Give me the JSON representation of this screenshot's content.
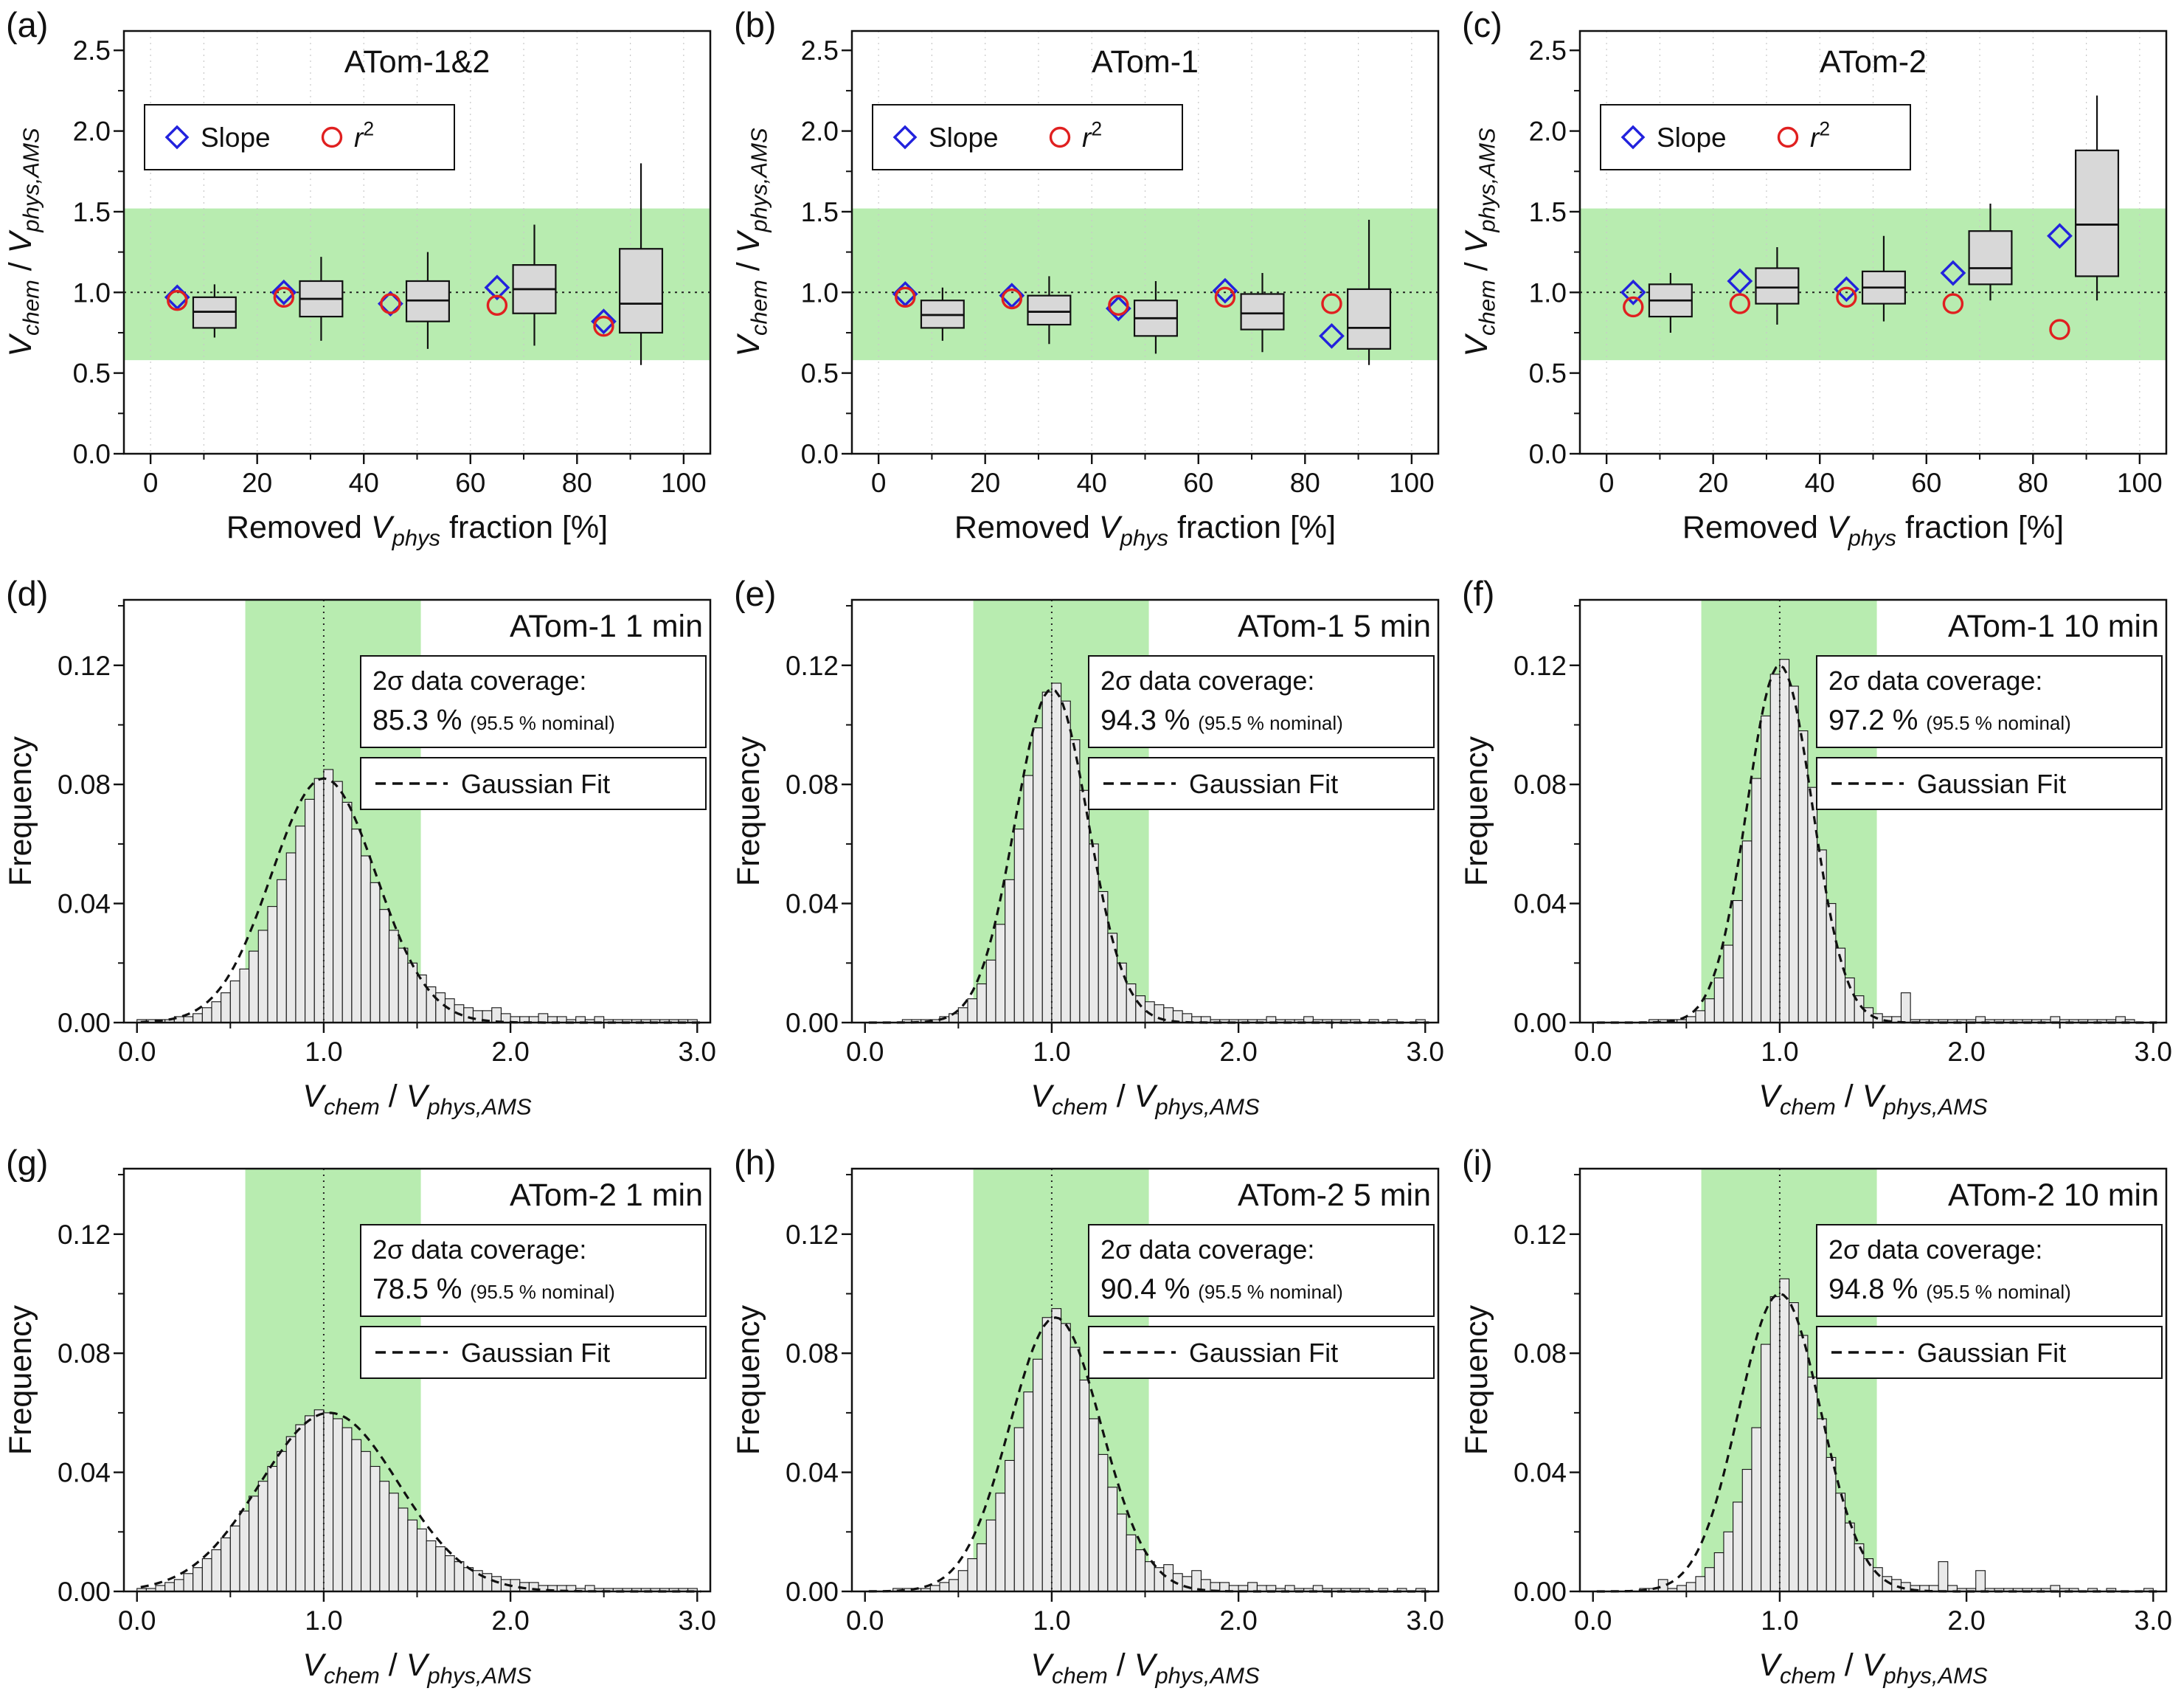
{
  "figure": {
    "background": "#ffffff",
    "colors": {
      "band": "#b8ecb0",
      "slope": "#2222dd",
      "r2": "#e02020",
      "box_fill": "#d8d8d8",
      "bar_fill": "#e9e9e9",
      "axis": "#111111"
    },
    "panels": [
      {
        "letter": "(a)"
      },
      {
        "letter": "(b)"
      },
      {
        "letter": "(c)"
      },
      {
        "letter": "(d)"
      },
      {
        "letter": "(e)"
      },
      {
        "letter": "(f)"
      },
      {
        "letter": "(g)"
      },
      {
        "letter": "(h)"
      },
      {
        "letter": "(i)"
      }
    ]
  },
  "labels": {
    "ratio_segments": [
      {
        "t": "V",
        "s": "i"
      },
      {
        "t": "chem",
        "s": "sub"
      },
      {
        "t": " / ",
        "s": "n"
      },
      {
        "t": "V",
        "s": "i"
      },
      {
        "t": "phys,AMS",
        "s": "sub"
      }
    ],
    "removed_segments": [
      {
        "t": "Removed ",
        "s": "n"
      },
      {
        "t": "V",
        "s": "i"
      },
      {
        "t": "phys",
        "s": "sub"
      },
      {
        "t": " fraction [%]",
        "s": "n"
      }
    ],
    "frequency_segments": [
      {
        "t": "Frequency",
        "s": "n"
      }
    ],
    "r2_segments": [
      {
        "t": "r",
        "s": "i"
      },
      {
        "t": "2",
        "s": "sup"
      }
    ],
    "slope_label": "Slope"
  },
  "chart_data": [
    {
      "type": "box",
      "title": "ATom-1&2",
      "xlim": [
        -5,
        105
      ],
      "ylim": [
        0,
        2.62
      ],
      "x_ticks": [
        0,
        20,
        40,
        60,
        80,
        100
      ],
      "x_tick_labels": [
        "0",
        "20",
        "40",
        "60",
        "80",
        "100"
      ],
      "x_minor": 10,
      "y_ticks": [
        0,
        0.5,
        1.0,
        1.5,
        2.0,
        2.5
      ],
      "y_tick_labels": [
        "0.0",
        "0.5",
        "1.0",
        "1.5",
        "2.0",
        "2.5"
      ],
      "y_minor": 0.25,
      "green_band": [
        0.58,
        1.52
      ],
      "ref_line": 1.0,
      "xlabel": "removed",
      "ylabel": "ratio",
      "groups": [
        {
          "x": 5,
          "slope": 0.97,
          "r2": 0.95,
          "box_x": 12,
          "lo": 0.72,
          "q1": 0.78,
          "med": 0.88,
          "q3": 0.97,
          "hi": 1.05
        },
        {
          "x": 25,
          "slope": 1.0,
          "r2": 0.97,
          "box_x": 32,
          "lo": 0.7,
          "q1": 0.85,
          "med": 0.96,
          "q3": 1.07,
          "hi": 1.22
        },
        {
          "x": 45,
          "slope": 0.93,
          "r2": 0.93,
          "box_x": 52,
          "lo": 0.65,
          "q1": 0.82,
          "med": 0.95,
          "q3": 1.07,
          "hi": 1.25
        },
        {
          "x": 65,
          "slope": 1.03,
          "r2": 0.92,
          "box_x": 72,
          "lo": 0.67,
          "q1": 0.87,
          "med": 1.02,
          "q3": 1.17,
          "hi": 1.42
        },
        {
          "x": 85,
          "slope": 0.82,
          "r2": 0.79,
          "box_x": 92,
          "lo": 0.55,
          "q1": 0.75,
          "med": 0.93,
          "q3": 1.27,
          "hi": 1.8
        }
      ]
    },
    {
      "type": "box",
      "title": "ATom-1",
      "xlim": [
        -5,
        105
      ],
      "ylim": [
        0,
        2.62
      ],
      "x_ticks": [
        0,
        20,
        40,
        60,
        80,
        100
      ],
      "x_tick_labels": [
        "0",
        "20",
        "40",
        "60",
        "80",
        "100"
      ],
      "x_minor": 10,
      "y_ticks": [
        0,
        0.5,
        1.0,
        1.5,
        2.0,
        2.5
      ],
      "y_tick_labels": [
        "0.0",
        "0.5",
        "1.0",
        "1.5",
        "2.0",
        "2.5"
      ],
      "y_minor": 0.25,
      "green_band": [
        0.58,
        1.52
      ],
      "ref_line": 1.0,
      "xlabel": "removed",
      "ylabel": "ratio",
      "groups": [
        {
          "x": 5,
          "slope": 0.99,
          "r2": 0.97,
          "box_x": 12,
          "lo": 0.7,
          "q1": 0.78,
          "med": 0.86,
          "q3": 0.95,
          "hi": 1.03
        },
        {
          "x": 25,
          "slope": 0.98,
          "r2": 0.96,
          "box_x": 32,
          "lo": 0.68,
          "q1": 0.8,
          "med": 0.88,
          "q3": 0.98,
          "hi": 1.1
        },
        {
          "x": 45,
          "slope": 0.9,
          "r2": 0.92,
          "box_x": 52,
          "lo": 0.62,
          "q1": 0.73,
          "med": 0.84,
          "q3": 0.95,
          "hi": 1.07
        },
        {
          "x": 65,
          "slope": 1.01,
          "r2": 0.97,
          "box_x": 72,
          "lo": 0.63,
          "q1": 0.77,
          "med": 0.87,
          "q3": 0.99,
          "hi": 1.12
        },
        {
          "x": 85,
          "slope": 0.73,
          "r2": 0.93,
          "box_x": 92,
          "lo": 0.55,
          "q1": 0.65,
          "med": 0.78,
          "q3": 1.02,
          "hi": 1.45
        }
      ]
    },
    {
      "type": "box",
      "title": "ATom-2",
      "xlim": [
        -5,
        105
      ],
      "ylim": [
        0,
        2.62
      ],
      "x_ticks": [
        0,
        20,
        40,
        60,
        80,
        100
      ],
      "x_tick_labels": [
        "0",
        "20",
        "40",
        "60",
        "80",
        "100"
      ],
      "x_minor": 10,
      "y_ticks": [
        0,
        0.5,
        1.0,
        1.5,
        2.0,
        2.5
      ],
      "y_tick_labels": [
        "0.0",
        "0.5",
        "1.0",
        "1.5",
        "2.0",
        "2.5"
      ],
      "y_minor": 0.25,
      "green_band": [
        0.58,
        1.52
      ],
      "ref_line": 1.0,
      "xlabel": "removed",
      "ylabel": "ratio",
      "groups": [
        {
          "x": 5,
          "slope": 1.0,
          "r2": 0.91,
          "box_x": 12,
          "lo": 0.75,
          "q1": 0.85,
          "med": 0.95,
          "q3": 1.05,
          "hi": 1.12
        },
        {
          "x": 25,
          "slope": 1.07,
          "r2": 0.93,
          "box_x": 32,
          "lo": 0.8,
          "q1": 0.93,
          "med": 1.03,
          "q3": 1.15,
          "hi": 1.28
        },
        {
          "x": 45,
          "slope": 1.02,
          "r2": 0.97,
          "box_x": 52,
          "lo": 0.82,
          "q1": 0.93,
          "med": 1.03,
          "q3": 1.13,
          "hi": 1.35
        },
        {
          "x": 65,
          "slope": 1.12,
          "r2": 0.93,
          "box_x": 72,
          "lo": 0.95,
          "q1": 1.05,
          "med": 1.15,
          "q3": 1.38,
          "hi": 1.55
        },
        {
          "x": 85,
          "slope": 1.35,
          "r2": 0.77,
          "box_x": 92,
          "lo": 0.95,
          "q1": 1.1,
          "med": 1.42,
          "q3": 1.88,
          "hi": 2.22
        }
      ]
    },
    {
      "type": "hist",
      "title": "ATom-1 1 min",
      "coverage_label": "2σ data coverage:",
      "coverage_value": "85.3 %",
      "coverage_nominal": "(95.5 % nominal)",
      "fit_label": "Gaussian Fit",
      "xlim": [
        -0.07,
        3.07
      ],
      "ylim": [
        0,
        0.142
      ],
      "x_ticks": [
        0,
        1,
        2,
        3
      ],
      "x_tick_labels": [
        "0.0",
        "1.0",
        "2.0",
        "3.0"
      ],
      "x_minor": 0.5,
      "y_ticks": [
        0,
        0.04,
        0.08,
        0.12
      ],
      "y_tick_labels": [
        "0.00",
        "0.04",
        "0.08",
        "0.12"
      ],
      "y_minor": 0.02,
      "green_band": [
        0.58,
        1.52
      ],
      "ref_line": 1.0,
      "xlabel": "ratio",
      "ylabel": "frequency",
      "bin_start": 0.0,
      "bin_width": 0.05,
      "fit": {
        "mu": 1.0,
        "sigma": 0.28,
        "amp": 0.082
      },
      "values": [
        0.001,
        0.001,
        0.001,
        0.001,
        0.002,
        0.002,
        0.003,
        0.005,
        0.007,
        0.01,
        0.014,
        0.018,
        0.024,
        0.031,
        0.039,
        0.048,
        0.057,
        0.066,
        0.075,
        0.082,
        0.085,
        0.081,
        0.074,
        0.065,
        0.056,
        0.047,
        0.038,
        0.031,
        0.025,
        0.02,
        0.016,
        0.012,
        0.01,
        0.008,
        0.006,
        0.005,
        0.004,
        0.004,
        0.005,
        0.003,
        0.002,
        0.002,
        0.002,
        0.003,
        0.002,
        0.002,
        0.001,
        0.002,
        0.001,
        0.002,
        0.001,
        0.001,
        0.001,
        0.001,
        0.001,
        0.001,
        0.001,
        0.001,
        0.001,
        0.001
      ]
    },
    {
      "type": "hist",
      "title": "ATom-1 5 min",
      "coverage_label": "2σ data coverage:",
      "coverage_value": "94.3 %",
      "coverage_nominal": "(95.5 % nominal)",
      "fit_label": "Gaussian Fit",
      "xlim": [
        -0.07,
        3.07
      ],
      "ylim": [
        0,
        0.142
      ],
      "x_ticks": [
        0,
        1,
        2,
        3
      ],
      "x_tick_labels": [
        "0.0",
        "1.0",
        "2.0",
        "3.0"
      ],
      "x_minor": 0.5,
      "y_ticks": [
        0,
        0.04,
        0.08,
        0.12
      ],
      "y_tick_labels": [
        "0.00",
        "0.04",
        "0.08",
        "0.12"
      ],
      "y_minor": 0.02,
      "green_band": [
        0.58,
        1.52
      ],
      "ref_line": 1.0,
      "xlabel": "ratio",
      "ylabel": "frequency",
      "bin_start": 0.0,
      "bin_width": 0.05,
      "fit": {
        "mu": 1.0,
        "sigma": 0.195,
        "amp": 0.112
      },
      "values": [
        0.0,
        0.0,
        0.0,
        0.0,
        0.001,
        0.001,
        0.001,
        0.001,
        0.002,
        0.003,
        0.005,
        0.008,
        0.013,
        0.021,
        0.033,
        0.048,
        0.065,
        0.083,
        0.099,
        0.111,
        0.114,
        0.108,
        0.095,
        0.078,
        0.06,
        0.044,
        0.03,
        0.02,
        0.013,
        0.009,
        0.007,
        0.006,
        0.005,
        0.004,
        0.003,
        0.002,
        0.002,
        0.001,
        0.001,
        0.001,
        0.001,
        0.001,
        0.001,
        0.002,
        0.001,
        0.001,
        0.001,
        0.002,
        0.001,
        0.001,
        0.001,
        0.001,
        0.001,
        0.0,
        0.001,
        0.0,
        0.001,
        0.0,
        0.0,
        0.001
      ]
    },
    {
      "type": "hist",
      "title": "ATom-1 10 min",
      "coverage_label": "2σ data coverage:",
      "coverage_value": "97.2 %",
      "coverage_nominal": "(95.5 % nominal)",
      "fit_label": "Gaussian Fit",
      "xlim": [
        -0.07,
        3.07
      ],
      "ylim": [
        0,
        0.142
      ],
      "x_ticks": [
        0,
        1,
        2,
        3
      ],
      "x_tick_labels": [
        "0.0",
        "1.0",
        "2.0",
        "3.0"
      ],
      "x_minor": 0.5,
      "y_ticks": [
        0,
        0.04,
        0.08,
        0.12
      ],
      "y_tick_labels": [
        "0.00",
        "0.04",
        "0.08",
        "0.12"
      ],
      "y_minor": 0.02,
      "green_band": [
        0.58,
        1.52
      ],
      "ref_line": 1.0,
      "xlabel": "ratio",
      "ylabel": "frequency",
      "bin_start": 0.0,
      "bin_width": 0.05,
      "fit": {
        "mu": 1.0,
        "sigma": 0.175,
        "amp": 0.12
      },
      "values": [
        0.0,
        0.0,
        0.0,
        0.0,
        0.0,
        0.0,
        0.001,
        0.001,
        0.001,
        0.001,
        0.002,
        0.004,
        0.008,
        0.015,
        0.026,
        0.041,
        0.061,
        0.082,
        0.103,
        0.117,
        0.122,
        0.113,
        0.098,
        0.079,
        0.058,
        0.04,
        0.025,
        0.015,
        0.009,
        0.005,
        0.003,
        0.002,
        0.002,
        0.01,
        0.001,
        0.001,
        0.001,
        0.001,
        0.001,
        0.001,
        0.001,
        0.002,
        0.001,
        0.001,
        0.001,
        0.001,
        0.001,
        0.001,
        0.001,
        0.002,
        0.001,
        0.001,
        0.001,
        0.001,
        0.001,
        0.001,
        0.002,
        0.001,
        0.0,
        0.0
      ]
    },
    {
      "type": "hist",
      "title": "ATom-2 1 min",
      "coverage_label": "2σ data coverage:",
      "coverage_value": "78.5 %",
      "coverage_nominal": "(95.5 % nominal)",
      "fit_label": "Gaussian Fit",
      "xlim": [
        -0.07,
        3.07
      ],
      "ylim": [
        0,
        0.142
      ],
      "x_ticks": [
        0,
        1,
        2,
        3
      ],
      "x_tick_labels": [
        "0.0",
        "1.0",
        "2.0",
        "3.0"
      ],
      "x_minor": 0.5,
      "y_ticks": [
        0,
        0.04,
        0.08,
        0.12
      ],
      "y_tick_labels": [
        "0.00",
        "0.04",
        "0.08",
        "0.12"
      ],
      "y_minor": 0.02,
      "green_band": [
        0.58,
        1.52
      ],
      "ref_line": 1.0,
      "xlabel": "ratio",
      "ylabel": "frequency",
      "bin_start": 0.0,
      "bin_width": 0.05,
      "fit": {
        "mu": 1.03,
        "sigma": 0.37,
        "amp": 0.06
      },
      "values": [
        0.001,
        0.001,
        0.002,
        0.003,
        0.004,
        0.006,
        0.008,
        0.011,
        0.014,
        0.018,
        0.022,
        0.027,
        0.032,
        0.037,
        0.042,
        0.047,
        0.052,
        0.056,
        0.059,
        0.061,
        0.06,
        0.058,
        0.055,
        0.051,
        0.047,
        0.042,
        0.037,
        0.033,
        0.028,
        0.024,
        0.021,
        0.017,
        0.015,
        0.012,
        0.01,
        0.008,
        0.007,
        0.006,
        0.005,
        0.004,
        0.004,
        0.003,
        0.003,
        0.002,
        0.002,
        0.002,
        0.002,
        0.001,
        0.002,
        0.001,
        0.001,
        0.001,
        0.001,
        0.001,
        0.001,
        0.001,
        0.001,
        0.001,
        0.001,
        0.001
      ]
    },
    {
      "type": "hist",
      "title": "ATom-2 5 min",
      "coverage_label": "2σ data coverage:",
      "coverage_value": "90.4 %",
      "coverage_nominal": "(95.5 % nominal)",
      "fit_label": "Gaussian Fit",
      "xlim": [
        -0.07,
        3.07
      ],
      "ylim": [
        0,
        0.142
      ],
      "x_ticks": [
        0,
        1,
        2,
        3
      ],
      "x_tick_labels": [
        "0.0",
        "1.0",
        "2.0",
        "3.0"
      ],
      "x_minor": 0.5,
      "y_ticks": [
        0,
        0.04,
        0.08,
        0.12
      ],
      "y_tick_labels": [
        "0.00",
        "0.04",
        "0.08",
        "0.12"
      ],
      "y_minor": 0.02,
      "green_band": [
        0.58,
        1.52
      ],
      "ref_line": 1.0,
      "xlabel": "ratio",
      "ylabel": "frequency",
      "bin_start": 0.0,
      "bin_width": 0.05,
      "fit": {
        "mu": 1.02,
        "sigma": 0.245,
        "amp": 0.092
      },
      "values": [
        0.0,
        0.0,
        0.0,
        0.001,
        0.001,
        0.001,
        0.001,
        0.002,
        0.003,
        0.004,
        0.007,
        0.011,
        0.016,
        0.024,
        0.033,
        0.044,
        0.055,
        0.067,
        0.078,
        0.092,
        0.095,
        0.09,
        0.082,
        0.071,
        0.058,
        0.046,
        0.035,
        0.026,
        0.019,
        0.014,
        0.01,
        0.008,
        0.009,
        0.006,
        0.005,
        0.007,
        0.004,
        0.003,
        0.003,
        0.002,
        0.002,
        0.003,
        0.002,
        0.002,
        0.001,
        0.002,
        0.001,
        0.001,
        0.002,
        0.001,
        0.001,
        0.001,
        0.001,
        0.001,
        0.0,
        0.001,
        0.0,
        0.001,
        0.0,
        0.001
      ]
    },
    {
      "type": "hist",
      "title": "ATom-2 10 min",
      "coverage_label": "2σ data coverage:",
      "coverage_value": "94.8 %",
      "coverage_nominal": "(95.5 % nominal)",
      "fit_label": "Gaussian Fit",
      "xlim": [
        -0.07,
        3.07
      ],
      "ylim": [
        0,
        0.142
      ],
      "x_ticks": [
        0,
        1,
        2,
        3
      ],
      "x_tick_labels": [
        "0.0",
        "1.0",
        "2.0",
        "3.0"
      ],
      "x_minor": 0.5,
      "y_ticks": [
        0,
        0.04,
        0.08,
        0.12
      ],
      "y_tick_labels": [
        "0.00",
        "0.04",
        "0.08",
        "0.12"
      ],
      "y_minor": 0.02,
      "green_band": [
        0.58,
        1.52
      ],
      "ref_line": 1.0,
      "xlabel": "ratio",
      "ylabel": "frequency",
      "bin_start": 0.0,
      "bin_width": 0.05,
      "fit": {
        "mu": 1.0,
        "sigma": 0.22,
        "amp": 0.1
      },
      "values": [
        0.0,
        0.0,
        0.0,
        0.0,
        0.0,
        0.001,
        0.001,
        0.004,
        0.001,
        0.002,
        0.003,
        0.005,
        0.008,
        0.013,
        0.02,
        0.03,
        0.041,
        0.055,
        0.083,
        0.099,
        0.105,
        0.097,
        0.086,
        0.072,
        0.058,
        0.045,
        0.033,
        0.023,
        0.016,
        0.011,
        0.008,
        0.005,
        0.004,
        0.003,
        0.002,
        0.002,
        0.002,
        0.01,
        0.002,
        0.001,
        0.001,
        0.007,
        0.001,
        0.001,
        0.001,
        0.001,
        0.001,
        0.001,
        0.001,
        0.002,
        0.001,
        0.001,
        0.0,
        0.001,
        0.0,
        0.001,
        0.0,
        0.0,
        0.0,
        0.001
      ]
    }
  ]
}
